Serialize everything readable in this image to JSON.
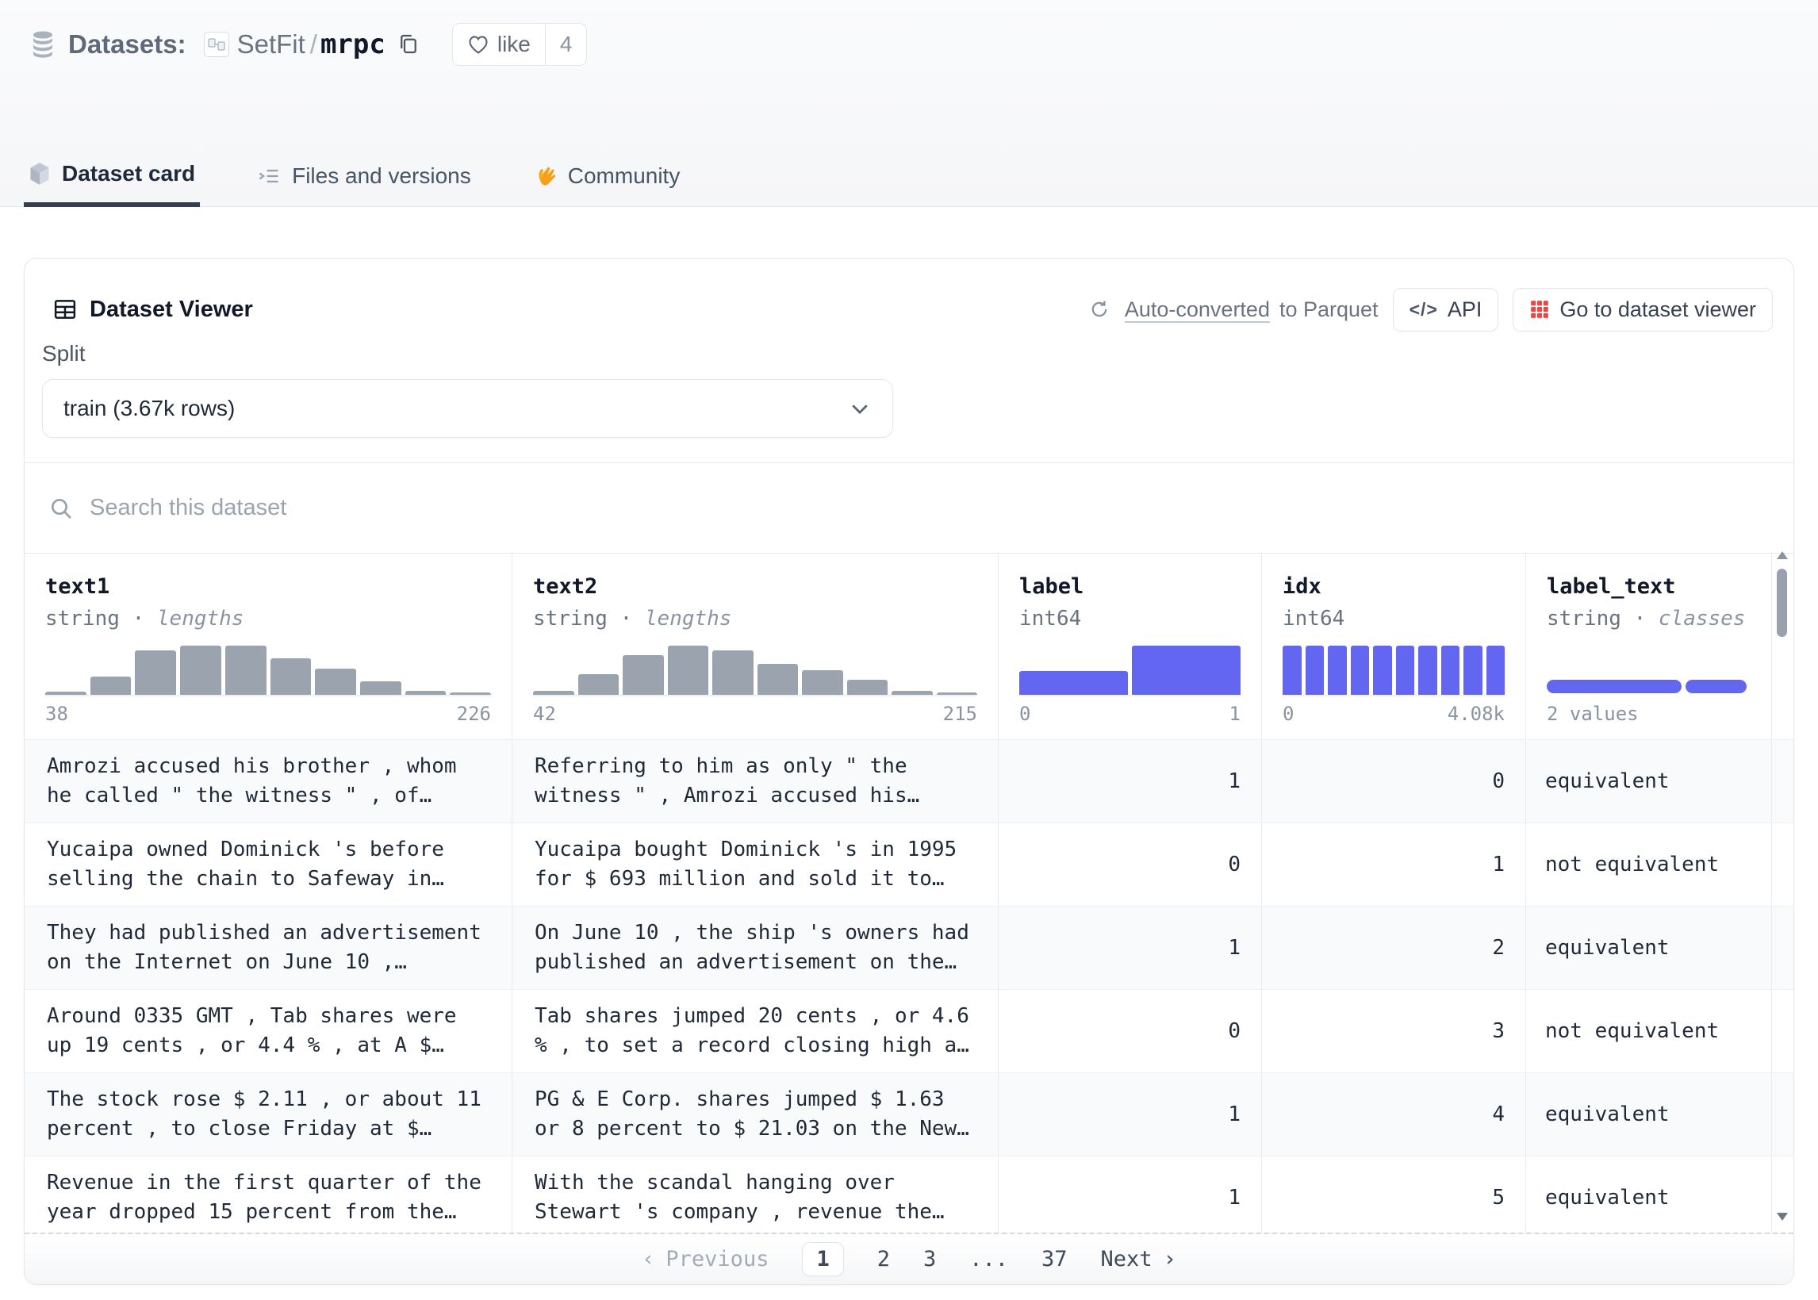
{
  "header": {
    "section_label": "Datasets:",
    "org": "SetFit",
    "separator": "/",
    "dataset": "mrpc",
    "like_label": "like",
    "like_count": "4"
  },
  "tabs": [
    {
      "label": "Dataset card"
    },
    {
      "label": "Files and versions"
    },
    {
      "label": "Community"
    }
  ],
  "viewer": {
    "title": "Dataset Viewer",
    "auto_converted_link": "Auto-converted",
    "auto_converted_rest": "to Parquet",
    "api_button": "API",
    "goto_button": "Go to dataset viewer",
    "split_label": "Split",
    "split_value": "train (3.67k rows)",
    "search_placeholder": "Search this dataset"
  },
  "colors": {
    "accent": "#6366f1",
    "hist_gray": "#9ba3af",
    "red_icon": "#ef4444"
  },
  "table": {
    "columns": [
      {
        "name": "text1",
        "type": "string",
        "subtype": "lengths",
        "dot": "·",
        "hist": {
          "type": "bar",
          "color": "#9ba3af",
          "bars": [
            0.07,
            0.37,
            0.9,
            1.0,
            1.0,
            0.75,
            0.53,
            0.27,
            0.08,
            0.05
          ],
          "min_label": "38",
          "max_label": "226"
        }
      },
      {
        "name": "text2",
        "type": "string",
        "subtype": "lengths",
        "dot": "·",
        "hist": {
          "type": "bar",
          "color": "#9ba3af",
          "bars": [
            0.08,
            0.42,
            0.8,
            1.0,
            0.9,
            0.63,
            0.5,
            0.3,
            0.08,
            0.04
          ],
          "min_label": "42",
          "max_label": "215"
        }
      },
      {
        "name": "label",
        "type": "int64",
        "subtype": "",
        "dot": "",
        "hist": {
          "type": "bar",
          "color": "#6366f1",
          "bars": [
            0.48,
            1.0
          ],
          "min_label": "0",
          "max_label": "1"
        }
      },
      {
        "name": "idx",
        "type": "int64",
        "subtype": "",
        "dot": "",
        "hist": {
          "type": "bar",
          "color": "#6366f1",
          "bars": [
            1,
            1,
            1,
            1,
            1,
            1,
            1,
            1,
            1,
            1
          ],
          "min_label": "0",
          "max_label": "4.08k"
        }
      },
      {
        "name": "label_text",
        "type": "string",
        "subtype": "classes",
        "dot": "·",
        "classbar": {
          "color": "#6366f1",
          "segments": [
            66,
            30
          ],
          "caption": "2 values"
        }
      }
    ],
    "rows": [
      {
        "text1": "Amrozi accused his brother , whom he called \" the witness \" , of…",
        "text2": "Referring to him as only \" the witness \" , Amrozi accused his…",
        "label": "1",
        "idx": "0",
        "label_text": "equivalent"
      },
      {
        "text1": "Yucaipa owned Dominick 's before selling the chain to Safeway in…",
        "text2": "Yucaipa bought Dominick 's in 1995 for $ 693 million and sold it to…",
        "label": "0",
        "idx": "1",
        "label_text": "not equivalent"
      },
      {
        "text1": "They had published an advertisement on the Internet on June 10 ,…",
        "text2": "On June 10 , the ship 's owners had published an advertisement on the…",
        "label": "1",
        "idx": "2",
        "label_text": "equivalent"
      },
      {
        "text1": "Around 0335 GMT , Tab shares were up 19 cents , or 4.4 % , at A $…",
        "text2": "Tab shares jumped 20 cents , or 4.6 % , to set a record closing high a…",
        "label": "0",
        "idx": "3",
        "label_text": "not equivalent"
      },
      {
        "text1": "The stock rose $ 2.11 , or about 11 percent , to close Friday at $…",
        "text2": "PG & E Corp. shares jumped $ 1.63 or 8 percent to $ 21.03 on the New…",
        "label": "1",
        "idx": "4",
        "label_text": "equivalent"
      },
      {
        "text1": "Revenue in the first quarter of the year dropped 15 percent from the…",
        "text2": "With the scandal hanging over Stewart 's company , revenue the…",
        "label": "1",
        "idx": "5",
        "label_text": "equivalent"
      }
    ]
  },
  "pagination": {
    "prev_chevron": "‹",
    "previous": "Previous",
    "pages": [
      "1",
      "2",
      "3",
      "...",
      "37"
    ],
    "current": "1",
    "next": "Next",
    "next_chevron": "›"
  }
}
